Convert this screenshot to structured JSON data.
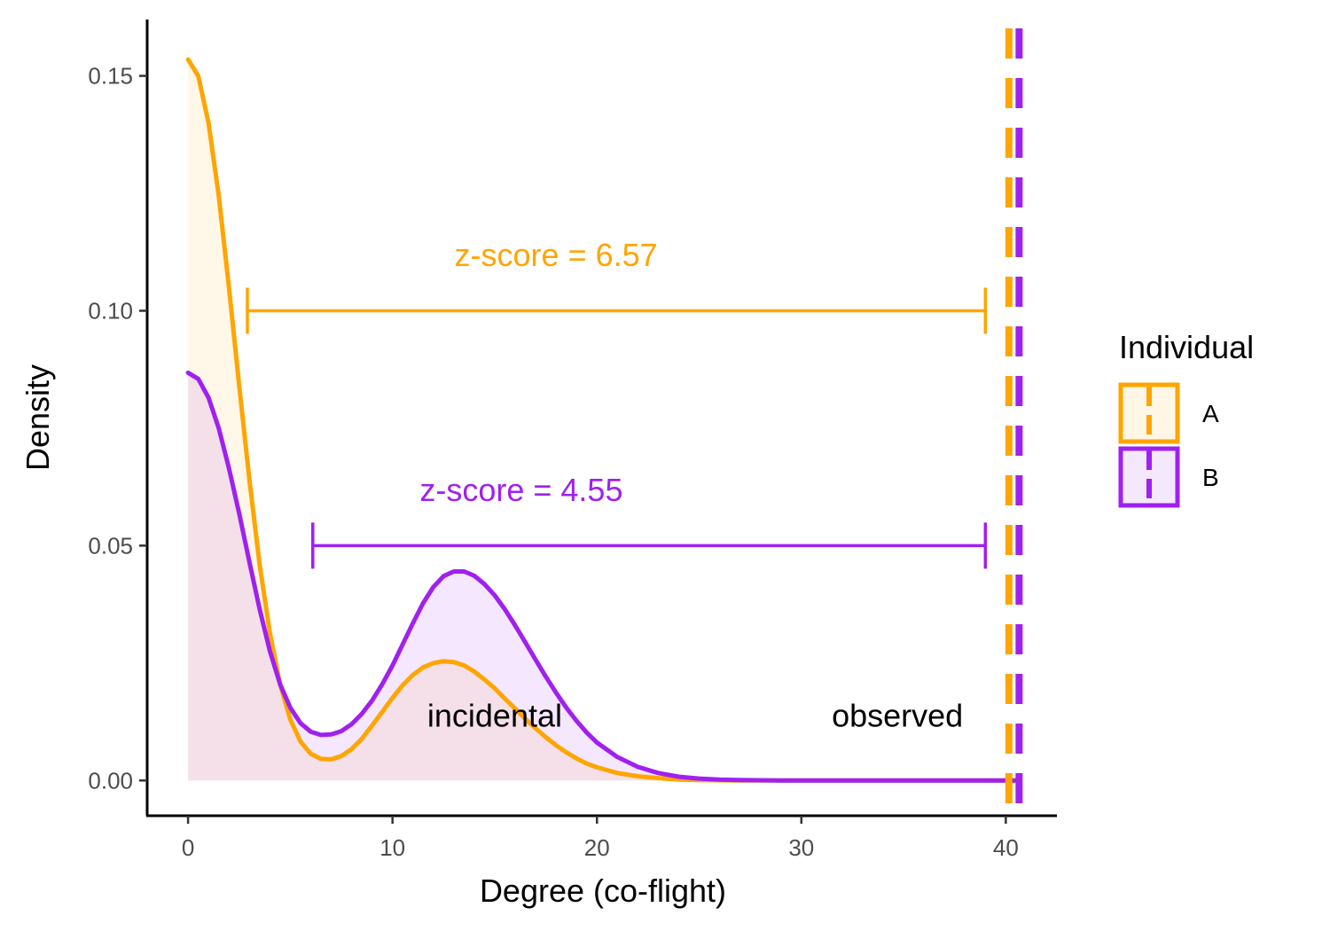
{
  "chart_data": {
    "type": "area",
    "xlabel": "Degree (co-flight)",
    "ylabel": "Density",
    "xlim": [
      -2,
      42.5
    ],
    "ylim": [
      -0.0075,
      0.162
    ],
    "x_ticks": [
      0,
      10,
      20,
      30,
      40
    ],
    "x_tick_labels": [
      "0",
      "10",
      "20",
      "30",
      "40"
    ],
    "y_ticks": [
      0.0,
      0.05,
      0.1,
      0.15
    ],
    "y_tick_labels": [
      "0.00",
      "0.05",
      "0.10",
      "0.15"
    ],
    "grid": false,
    "legend": {
      "title": "Individual",
      "position": "right",
      "entries": [
        {
          "label": "A",
          "color": "#FFA500",
          "fill": "#FFF6E6"
        },
        {
          "label": "B",
          "color": "#A020F0",
          "fill": "#F4E8FD"
        }
      ]
    },
    "series": [
      {
        "name": "A",
        "color": "#FFA500",
        "fill": "rgba(255,165,0,0.09)",
        "x": [
          0,
          0.5,
          1,
          1.5,
          2,
          2.5,
          3,
          3.5,
          4,
          4.5,
          5,
          5.5,
          6,
          6.5,
          7,
          7.5,
          8,
          8.5,
          9,
          9.5,
          10,
          10.5,
          11,
          11.5,
          12,
          12.5,
          13,
          13.5,
          14,
          14.5,
          15,
          15.5,
          16,
          16.5,
          17,
          17.5,
          18,
          18.5,
          19,
          19.5,
          20,
          21,
          22,
          23,
          24,
          25,
          26,
          27,
          28,
          29,
          30,
          32,
          34,
          36,
          38,
          40,
          40.7
        ],
        "y": [
          0.1535,
          0.15,
          0.14,
          0.1245,
          0.105,
          0.084,
          0.064,
          0.046,
          0.0315,
          0.0205,
          0.013,
          0.0083,
          0.0057,
          0.0046,
          0.0045,
          0.0052,
          0.0067,
          0.0089,
          0.0117,
          0.0146,
          0.0176,
          0.0203,
          0.0225,
          0.0241,
          0.025,
          0.0254,
          0.0252,
          0.0245,
          0.0232,
          0.0215,
          0.0196,
          0.0174,
          0.0153,
          0.0131,
          0.0111,
          0.0092,
          0.0075,
          0.006,
          0.0047,
          0.0036,
          0.0028,
          0.0016,
          0.0009,
          0.0005,
          0.0002,
          0.0001,
          5e-05,
          0.0,
          0.0,
          0.0,
          0.0,
          0.0,
          0.0,
          0.0,
          0.0,
          0.0,
          0.0
        ]
      },
      {
        "name": "B",
        "color": "#A020F0",
        "fill": "rgba(160,32,240,0.11)",
        "x": [
          0,
          0.5,
          1,
          1.5,
          2,
          2.5,
          3,
          3.5,
          4,
          4.5,
          5,
          5.5,
          6,
          6.5,
          7,
          7.5,
          8,
          8.5,
          9,
          9.5,
          10,
          10.5,
          11,
          11.5,
          12,
          12.5,
          13,
          13.5,
          14,
          14.5,
          15,
          15.5,
          16,
          16.5,
          17,
          17.5,
          18,
          18.5,
          19,
          19.5,
          20,
          21,
          22,
          23,
          24,
          25,
          26,
          27,
          28,
          29,
          30,
          32,
          34,
          36,
          38,
          40,
          40.7
        ],
        "y": [
          0.0868,
          0.0855,
          0.0815,
          0.075,
          0.0665,
          0.0568,
          0.0465,
          0.0365,
          0.0276,
          0.0205,
          0.0155,
          0.0122,
          0.0104,
          0.0097,
          0.0098,
          0.0105,
          0.012,
          0.0142,
          0.017,
          0.0205,
          0.0245,
          0.029,
          0.0335,
          0.0378,
          0.0412,
          0.0435,
          0.0445,
          0.0445,
          0.0436,
          0.0418,
          0.0394,
          0.0364,
          0.033,
          0.0294,
          0.0257,
          0.0221,
          0.0187,
          0.0155,
          0.0127,
          0.0102,
          0.0081,
          0.005,
          0.0029,
          0.0016,
          0.0008,
          0.0004,
          0.0002,
          0.0001,
          5e-05,
          0.0,
          0.0,
          0.0,
          0.0,
          0.0,
          0.0,
          0.0,
          0.0
        ]
      }
    ],
    "observed_lines": [
      {
        "series": "A",
        "x": 40.15,
        "color": "#FFA500"
      },
      {
        "series": "B",
        "x": 40.65,
        "color": "#A020F0"
      }
    ],
    "zscore_intervals": [
      {
        "series": "A",
        "x_start": 2.9,
        "x_end": 39.0,
        "y": 0.1,
        "label": "z-score = 6.57",
        "label_x": 18.0,
        "label_y": 0.1095,
        "color": "#FFA500"
      },
      {
        "series": "B",
        "x_start": 6.1,
        "x_end": 39.0,
        "y": 0.05,
        "label": "z-score = 4.55",
        "label_x": 16.3,
        "label_y": 0.0595,
        "color": "#A020F0"
      }
    ],
    "annotations": [
      {
        "text": "incidental",
        "x": 15.0,
        "y": 0.0115,
        "color": "#000000"
      },
      {
        "text": "observed",
        "x": 34.7,
        "y": 0.0115,
        "color": "#000000"
      }
    ]
  }
}
